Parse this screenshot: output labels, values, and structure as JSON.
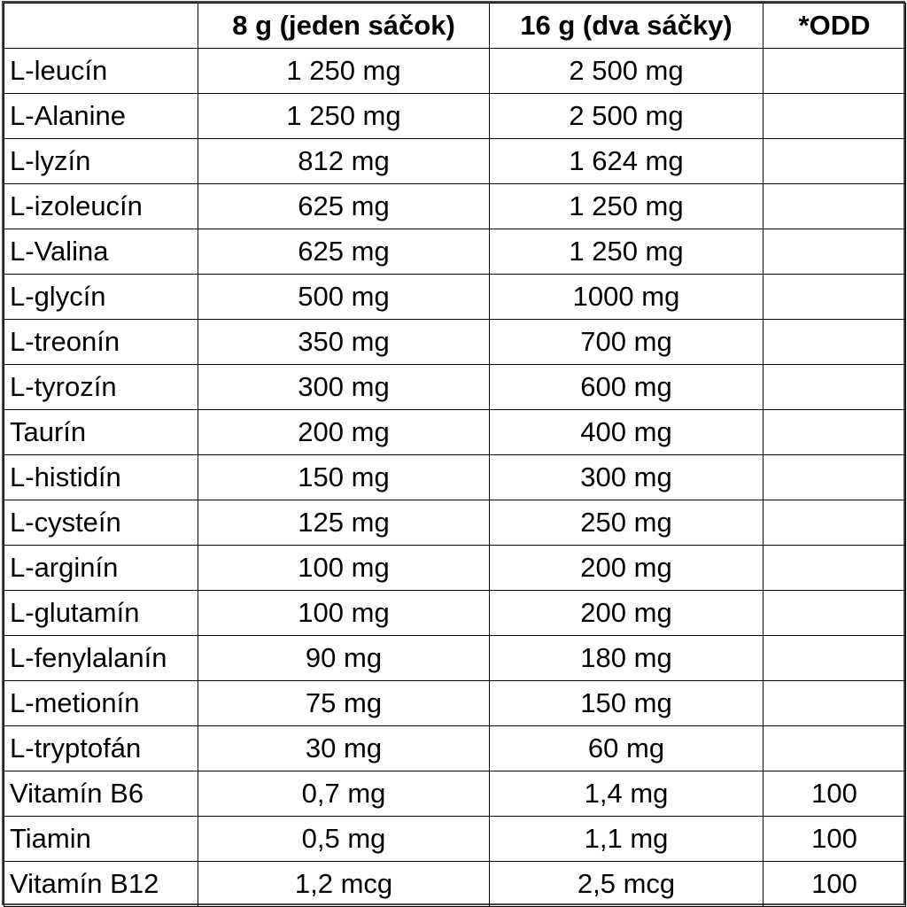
{
  "table": {
    "header": [
      "8 g (jeden sáčok)",
      "16 g (dva sáčky)",
      "*ODD"
    ],
    "rows": [
      [
        "L-leucín",
        "1 250 mg",
        "2 500 mg"
      ],
      [
        "L-Alanine",
        "1 250 mg",
        "2 500 mg"
      ],
      [
        "L-lyzín",
        "812 mg",
        "1 624 mg"
      ],
      [
        "L-izoleucín",
        "625 mg",
        "1 250 mg"
      ],
      [
        "L-Valina",
        "625 mg",
        "1 250 mg"
      ],
      [
        "L-glycín",
        "500 mg",
        "1000 mg"
      ],
      [
        "L-treonín",
        "350 mg",
        "700 mg"
      ],
      [
        "L-tyrozín",
        "300 mg",
        "600 mg"
      ],
      [
        "Taurín",
        "200 mg",
        "400 mg"
      ],
      [
        "L-histidín",
        "150 mg",
        "300 mg"
      ],
      [
        "L-cysteín",
        "125 mg",
        "250 mg"
      ],
      [
        "L-arginín",
        "100 mg",
        "200 mg"
      ],
      [
        "L-glutamín",
        "100 mg",
        "200 mg"
      ],
      [
        "L-fenylalanín",
        "90 mg",
        "180 mg"
      ],
      [
        "L-metionín",
        "75 mg",
        "150 mg"
      ],
      [
        "L-tryptofán",
        "30 mg",
        "60 mg"
      ],
      [
        "Vitamín B6",
        "0,7 mg",
        "1,4 mg",
        "100"
      ],
      [
        "Tiamin",
        "0,5 mg",
        "1,1 mg",
        "100"
      ],
      [
        "Vitamín B12",
        "1,2 mcg",
        "2,5 mcg",
        "100"
      ]
    ]
  }
}
